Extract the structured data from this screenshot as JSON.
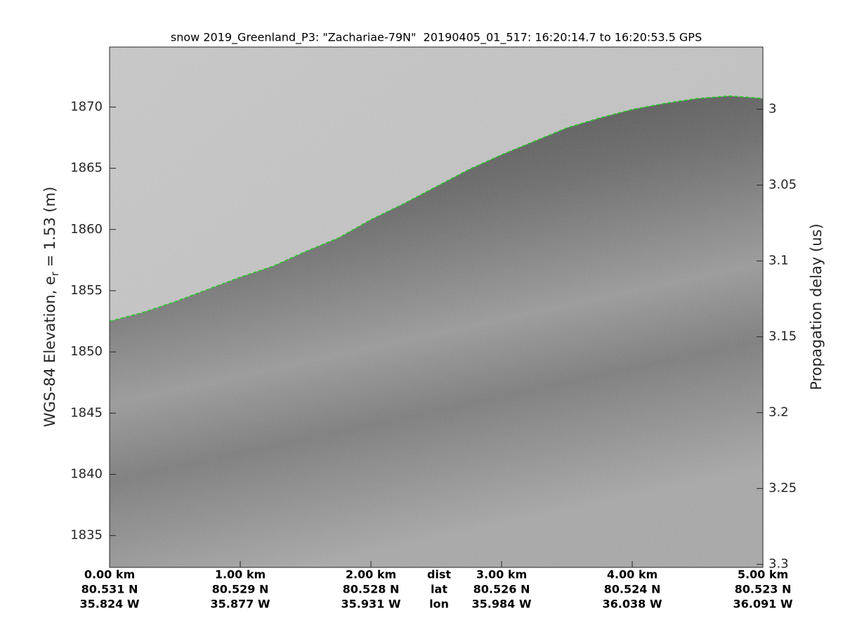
{
  "chart_data": {
    "type": "echogram",
    "title": "snow 2019_Greenland_P3: \"Zachariae-79N\"  20190405_01_517: 16:20:14.7 to 16:20:53.5 GPS",
    "y_label": [
      "WGS-84 Elevation, e",
      "r",
      " = 1.53 (m)"
    ],
    "y2_label": "Propagation delay (us)",
    "xlim": [
      0,
      5
    ],
    "xticks": [
      {
        "value": 0,
        "label": "0.00 km"
      },
      {
        "value": 1,
        "label": "1.00 km"
      },
      {
        "value": 2,
        "label": "2.00 km"
      },
      {
        "value": 3,
        "label": "3.00 km"
      },
      {
        "value": 4,
        "label": "4.00 km"
      },
      {
        "value": 5,
        "label": "5.00 km"
      }
    ],
    "x_row_names": [
      "dist",
      "lat",
      "lon"
    ],
    "lat_labels": [
      "80.531 N",
      "80.529 N",
      "80.528 N",
      "80.526 N",
      "80.524 N",
      "80.523 N"
    ],
    "lon_labels": [
      "35.824 W",
      "35.877 W",
      "35.931 W",
      "35.984 W",
      "36.038 W",
      "36.091 W"
    ],
    "ylim": [
      1832.4,
      1874.9
    ],
    "yticks": [
      1835,
      1840,
      1845,
      1850,
      1855,
      1860,
      1865,
      1870
    ],
    "y2lim": [
      3.302,
      2.959
    ],
    "y2ticks": [
      3,
      3.05,
      3.1,
      3.15,
      3.2,
      3.25,
      3.3
    ],
    "x": [
      0,
      0.25,
      0.5,
      0.75,
      1,
      1.25,
      1.5,
      1.75,
      2,
      2.25,
      2.5,
      2.75,
      3,
      3.25,
      3.5,
      3.75,
      4,
      4.25,
      4.5,
      4.75,
      5
    ],
    "series": [
      {
        "name": "surface",
        "color": "#22cc22",
        "values": [
          1852.5,
          1853.2,
          1854.1,
          1855.1,
          1856.1,
          1857.0,
          1858.2,
          1859.3,
          1860.8,
          1862.1,
          1863.5,
          1864.9,
          1866.1,
          1867.2,
          1868.3,
          1869.1,
          1869.8,
          1870.3,
          1870.7,
          1870.9,
          1870.7
        ]
      }
    ]
  }
}
